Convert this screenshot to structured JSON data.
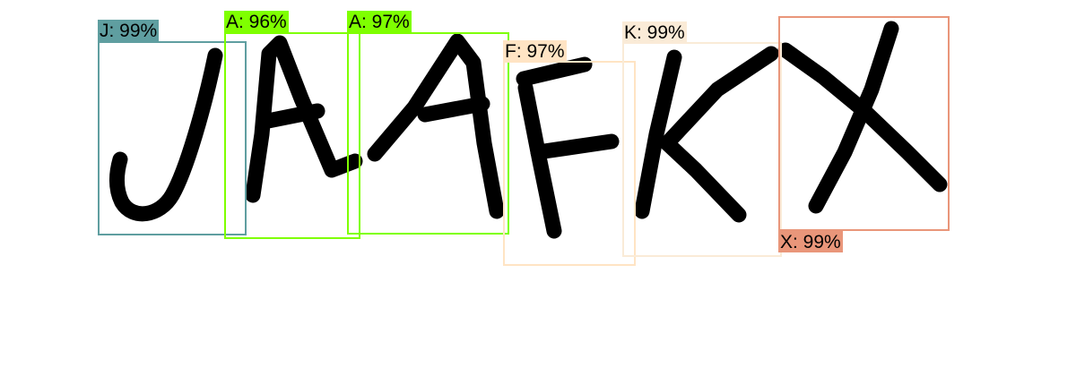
{
  "detections": [
    {
      "letter": "J",
      "label": "J: 99%",
      "color": "#5f9ea0"
    },
    {
      "letter": "A",
      "label": "A: 96%",
      "color": "#7fff00"
    },
    {
      "letter": "A",
      "label": "A: 97%",
      "color": "#7fff00"
    },
    {
      "letter": "F",
      "label": "F: 97%",
      "color": "#ffe4c4"
    },
    {
      "letter": "K",
      "label": "K: 99%",
      "color": "#faebd7"
    },
    {
      "letter": "X",
      "label": "X: 99%",
      "color": "#e9967a"
    }
  ]
}
